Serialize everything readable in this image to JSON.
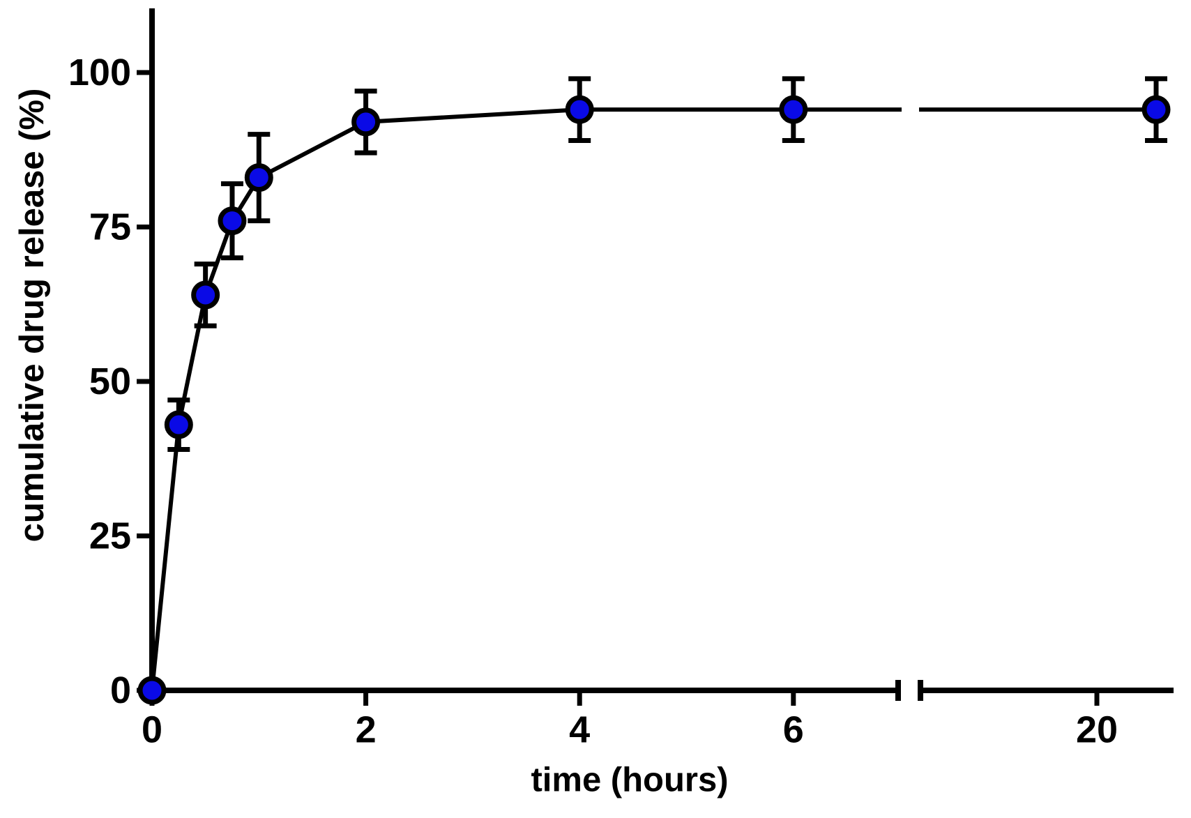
{
  "chart_data": {
    "type": "line",
    "title": "",
    "xlabel": "time (hours)",
    "ylabel": "cumulative drug release (%)",
    "series": [
      {
        "name": "cumulative drug release",
        "x_hours": [
          0,
          0.25,
          0.5,
          0.75,
          1,
          2,
          4,
          6,
          24
        ],
        "y_percent": [
          0,
          43,
          64,
          76,
          83,
          92,
          94,
          94,
          94
        ],
        "y_error": [
          0,
          4,
          5,
          6,
          7,
          5,
          5,
          5,
          5
        ]
      }
    ],
    "x_ticks": [
      {
        "value": 0,
        "label": "0"
      },
      {
        "value": 2,
        "label": "2"
      },
      {
        "value": 4,
        "label": "4"
      },
      {
        "value": 6,
        "label": "6"
      },
      {
        "value": 20,
        "label": "20"
      }
    ],
    "y_ticks": [
      {
        "value": 0,
        "label": "0"
      },
      {
        "value": 25,
        "label": "25"
      },
      {
        "value": 50,
        "label": "50"
      },
      {
        "value": 75,
        "label": "75"
      },
      {
        "value": 100,
        "label": "100"
      }
    ],
    "ylim": [
      0,
      110
    ],
    "xlim_left_segment": [
      0,
      7
    ],
    "xlim_right_segment": [
      8,
      25
    ],
    "x_axis_break": true,
    "grid": false,
    "legend": "none",
    "marker": {
      "shape": "circle",
      "fill": "#0a0ae6",
      "stroke": "#000000"
    },
    "line_color": "#000000"
  }
}
